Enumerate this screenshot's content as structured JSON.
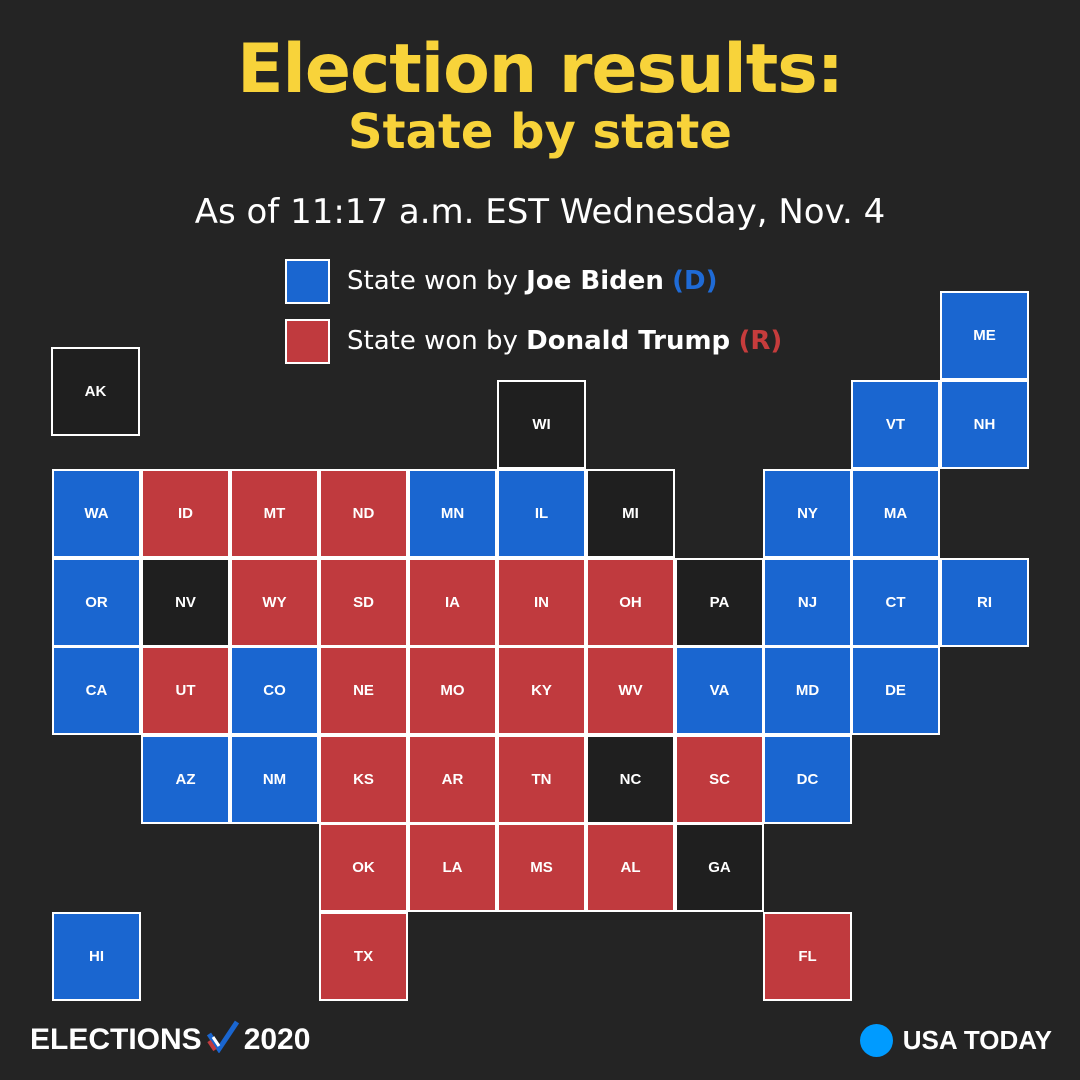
{
  "header": {
    "title": "Election results:",
    "subtitle": "State by state",
    "as_of": "As of 11:17 a.m. EST Wednesday, Nov. 4"
  },
  "legend": {
    "biden": {
      "prefix": "State won by",
      "name": "Joe Biden",
      "party": "(D)",
      "color": "#1a66d0"
    },
    "trump": {
      "prefix": "State won by",
      "name": "Donald Trump",
      "party": "(R)",
      "color": "#c03a3e"
    }
  },
  "colors": {
    "biden": "#1a66d0",
    "trump": "#c03a3e",
    "undecided": "#1f1f1f"
  },
  "states": [
    {
      "abbr": "AK",
      "result": "undecided",
      "row": 0,
      "col": 0
    },
    {
      "abbr": "ME",
      "result": "biden",
      "row": -1,
      "col": 10
    },
    {
      "abbr": "WI",
      "result": "undecided",
      "row": 0,
      "col": 5
    },
    {
      "abbr": "VT",
      "result": "biden",
      "row": 0,
      "col": 9
    },
    {
      "abbr": "NH",
      "result": "biden",
      "row": 0,
      "col": 10
    },
    {
      "abbr": "WA",
      "result": "biden",
      "row": 1,
      "col": 0
    },
    {
      "abbr": "ID",
      "result": "trump",
      "row": 1,
      "col": 1
    },
    {
      "abbr": "MT",
      "result": "trump",
      "row": 1,
      "col": 2
    },
    {
      "abbr": "ND",
      "result": "trump",
      "row": 1,
      "col": 3
    },
    {
      "abbr": "MN",
      "result": "biden",
      "row": 1,
      "col": 4
    },
    {
      "abbr": "IL",
      "result": "biden",
      "row": 1,
      "col": 5
    },
    {
      "abbr": "MI",
      "result": "undecided",
      "row": 1,
      "col": 6
    },
    {
      "abbr": "NY",
      "result": "biden",
      "row": 1,
      "col": 8
    },
    {
      "abbr": "MA",
      "result": "biden",
      "row": 1,
      "col": 9
    },
    {
      "abbr": "OR",
      "result": "biden",
      "row": 2,
      "col": 0
    },
    {
      "abbr": "NV",
      "result": "undecided",
      "row": 2,
      "col": 1
    },
    {
      "abbr": "WY",
      "result": "trump",
      "row": 2,
      "col": 2
    },
    {
      "abbr": "SD",
      "result": "trump",
      "row": 2,
      "col": 3
    },
    {
      "abbr": "IA",
      "result": "trump",
      "row": 2,
      "col": 4
    },
    {
      "abbr": "IN",
      "result": "trump",
      "row": 2,
      "col": 5
    },
    {
      "abbr": "OH",
      "result": "trump",
      "row": 2,
      "col": 6
    },
    {
      "abbr": "PA",
      "result": "undecided",
      "row": 2,
      "col": 7
    },
    {
      "abbr": "NJ",
      "result": "biden",
      "row": 2,
      "col": 8
    },
    {
      "abbr": "CT",
      "result": "biden",
      "row": 2,
      "col": 9
    },
    {
      "abbr": "RI",
      "result": "biden",
      "row": 2,
      "col": 10
    },
    {
      "abbr": "CA",
      "result": "biden",
      "row": 3,
      "col": 0
    },
    {
      "abbr": "UT",
      "result": "trump",
      "row": 3,
      "col": 1
    },
    {
      "abbr": "CO",
      "result": "biden",
      "row": 3,
      "col": 2
    },
    {
      "abbr": "NE",
      "result": "trump",
      "row": 3,
      "col": 3
    },
    {
      "abbr": "MO",
      "result": "trump",
      "row": 3,
      "col": 4
    },
    {
      "abbr": "KY",
      "result": "trump",
      "row": 3,
      "col": 5
    },
    {
      "abbr": "WV",
      "result": "trump",
      "row": 3,
      "col": 6
    },
    {
      "abbr": "VA",
      "result": "biden",
      "row": 3,
      "col": 7
    },
    {
      "abbr": "MD",
      "result": "biden",
      "row": 3,
      "col": 8
    },
    {
      "abbr": "DE",
      "result": "biden",
      "row": 3,
      "col": 9
    },
    {
      "abbr": "AZ",
      "result": "biden",
      "row": 4,
      "col": 1
    },
    {
      "abbr": "NM",
      "result": "biden",
      "row": 4,
      "col": 2
    },
    {
      "abbr": "KS",
      "result": "trump",
      "row": 4,
      "col": 3
    },
    {
      "abbr": "AR",
      "result": "trump",
      "row": 4,
      "col": 4
    },
    {
      "abbr": "TN",
      "result": "trump",
      "row": 4,
      "col": 5
    },
    {
      "abbr": "NC",
      "result": "undecided",
      "row": 4,
      "col": 6
    },
    {
      "abbr": "SC",
      "result": "trump",
      "row": 4,
      "col": 7
    },
    {
      "abbr": "DC",
      "result": "biden",
      "row": 4,
      "col": 8
    },
    {
      "abbr": "OK",
      "result": "trump",
      "row": 5,
      "col": 3
    },
    {
      "abbr": "LA",
      "result": "trump",
      "row": 5,
      "col": 4
    },
    {
      "abbr": "MS",
      "result": "trump",
      "row": 5,
      "col": 5
    },
    {
      "abbr": "AL",
      "result": "trump",
      "row": 5,
      "col": 6
    },
    {
      "abbr": "GA",
      "result": "undecided",
      "row": 5,
      "col": 7
    },
    {
      "abbr": "HI",
      "result": "biden",
      "row": 6,
      "col": 0
    },
    {
      "abbr": "TX",
      "result": "trump",
      "row": 6,
      "col": 3
    },
    {
      "abbr": "FL",
      "result": "trump",
      "row": 6,
      "col": 8
    }
  ],
  "footer": {
    "elections_label": "ELECTIONS",
    "year": "2020",
    "check_icon": "check-mark-icon",
    "brand": "USA TODAY",
    "brand_dot_color": "#009bff"
  }
}
